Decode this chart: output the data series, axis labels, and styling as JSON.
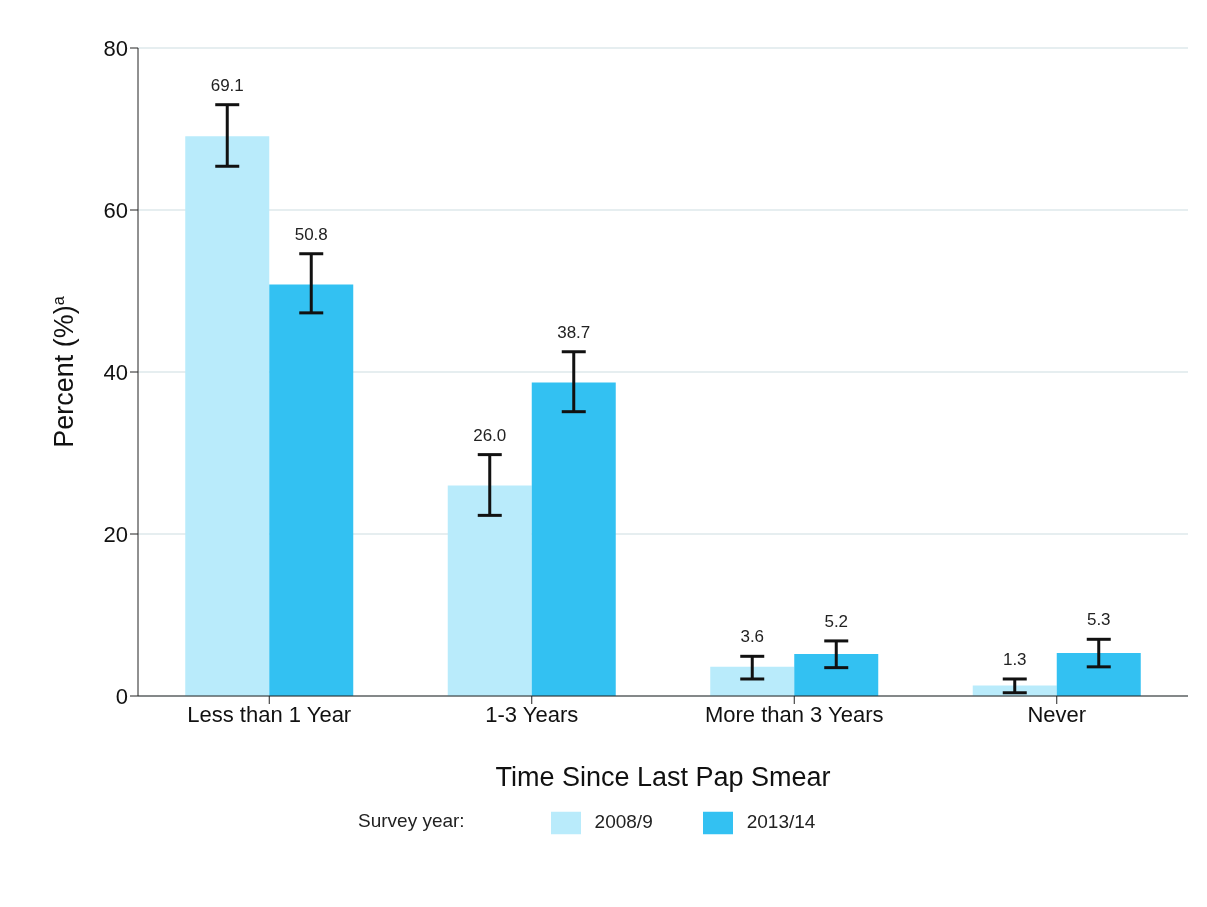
{
  "chart_data": {
    "type": "bar",
    "xlabel": "Time Since Last Pap Smear",
    "ylabel": "Percent (%)$^{a}$",
    "legend_title": "Survey year:",
    "categories": [
      "Less than 1 Year",
      "1-3 Years",
      "More than 3 Years",
      "Never"
    ],
    "series": [
      {
        "name": "2008/9",
        "color": "#b9ebfb",
        "values": [
          69.1,
          26.0,
          3.6,
          1.3
        ],
        "value_labels": [
          "69.1",
          "26.0",
          "3.6",
          "1.3"
        ],
        "errors": [
          [
            65.4,
            73.0
          ],
          [
            22.3,
            29.8
          ],
          [
            2.1,
            4.9
          ],
          [
            0.4,
            2.1
          ]
        ]
      },
      {
        "name": "2013/14",
        "color": "#33c1f2",
        "values": [
          50.8,
          38.7,
          5.2,
          5.3
        ],
        "value_labels": [
          "50.8",
          "38.7",
          "5.2",
          "5.3"
        ],
        "errors": [
          [
            47.3,
            54.6
          ],
          [
            35.1,
            42.5
          ],
          [
            3.5,
            6.8
          ],
          [
            3.6,
            7.0
          ]
        ]
      }
    ],
    "ylim": [
      0,
      80
    ],
    "yticks": [
      0,
      20,
      40,
      60,
      80
    ],
    "grid": "y",
    "legend": "bottom"
  }
}
